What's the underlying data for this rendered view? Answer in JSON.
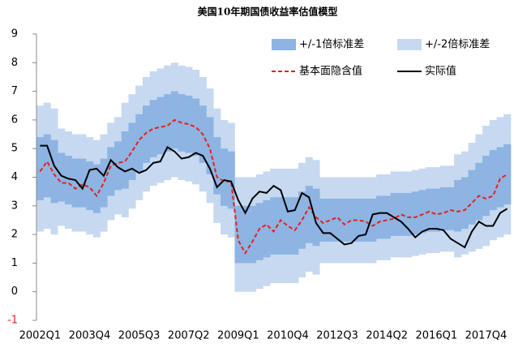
{
  "chart_data": {
    "type": "band-line",
    "title": "美国10年期国债收益率估值模型",
    "categories": [
      "2002Q1",
      null,
      null,
      null,
      null,
      null,
      null,
      "2003Q4",
      null,
      null,
      null,
      null,
      null,
      null,
      "2005Q3",
      null,
      null,
      null,
      null,
      null,
      null,
      "2007Q2",
      null,
      null,
      null,
      null,
      null,
      null,
      "2009Q1",
      null,
      null,
      null,
      null,
      null,
      null,
      "2010Q4",
      null,
      null,
      null,
      null,
      null,
      null,
      "2012Q3",
      null,
      null,
      null,
      null,
      null,
      null,
      "2014Q2",
      null,
      null,
      null,
      null,
      null,
      null,
      "2016Q1",
      null,
      null,
      null,
      null,
      null,
      null,
      "2017Q4",
      null,
      null,
      null
    ],
    "ylim": [
      -1,
      9
    ],
    "yticks": [
      -1,
      0,
      1,
      2,
      3,
      4,
      5,
      6,
      7,
      8,
      9
    ],
    "legend": "upper right",
    "bands": [
      {
        "name": "+/-2倍标准差",
        "color": "#c6d9f1",
        "lower": [
          2.1,
          2.2,
          2.0,
          2.3,
          2.2,
          2.1,
          2.1,
          2.0,
          1.9,
          2.1,
          2.5,
          2.7,
          2.6,
          2.9,
          3.2,
          3.5,
          3.7,
          3.8,
          3.9,
          4.0,
          3.9,
          3.85,
          3.75,
          3.5,
          3.1,
          2.4,
          2.0,
          1.9,
          0,
          0,
          0,
          0.1,
          0.2,
          0.3,
          0.3,
          0.3,
          0.3,
          0.5,
          0.7,
          0.6,
          1.0,
          1.0,
          1.0,
          1.0,
          1.0,
          1.0,
          1.0,
          1.0,
          1.1,
          1.1,
          1.2,
          1.2,
          1.2,
          1.25,
          1.3,
          1.35,
          1.35,
          1.4,
          1.4,
          1.2,
          1.3,
          1.4,
          1.5,
          1.6,
          1.8,
          1.9,
          2.0
        ],
        "values": [
          6.5,
          6.6,
          6.4,
          5.7,
          5.6,
          5.5,
          5.5,
          5.4,
          5.3,
          5.5,
          5.9,
          6.1,
          6.6,
          6.9,
          7.2,
          7.5,
          7.7,
          7.8,
          7.9,
          8.0,
          7.9,
          7.85,
          7.75,
          7.5,
          7.1,
          6.4,
          6.0,
          5.9,
          4.0,
          4.0,
          4.0,
          4.1,
          4.2,
          4.3,
          4.3,
          4.3,
          4.3,
          4.5,
          4.7,
          4.6,
          4.0,
          4.0,
          4.0,
          4.0,
          4.0,
          4.0,
          4.0,
          4.0,
          4.1,
          4.1,
          4.2,
          4.2,
          4.2,
          4.25,
          4.3,
          4.35,
          4.35,
          4.4,
          4.4,
          4.8,
          4.9,
          5.2,
          5.5,
          5.8,
          6.0,
          6.1,
          6.2
        ]
      },
      {
        "name": "+/-1倍标准差",
        "color": "#8db4e2",
        "lower": [
          3.2,
          3.3,
          3.1,
          3.15,
          3.05,
          2.95,
          2.95,
          2.85,
          2.75,
          2.95,
          3.35,
          3.55,
          3.6,
          3.9,
          4.2,
          4.5,
          4.7,
          4.8,
          4.9,
          5.0,
          4.9,
          4.85,
          4.75,
          4.5,
          4.1,
          3.4,
          3.0,
          2.9,
          1.0,
          1.0,
          1.0,
          1.1,
          1.2,
          1.3,
          1.3,
          1.3,
          1.3,
          1.5,
          1.7,
          1.6,
          1.75,
          1.75,
          1.75,
          1.75,
          1.75,
          1.75,
          1.75,
          1.75,
          1.85,
          1.85,
          1.95,
          1.95,
          1.95,
          2.0,
          2.05,
          2.1,
          2.1,
          2.15,
          2.15,
          2.1,
          2.2,
          2.35,
          2.5,
          2.65,
          2.85,
          2.95,
          3.05
        ],
        "values": [
          5.4,
          5.5,
          5.3,
          4.85,
          4.75,
          4.65,
          4.65,
          4.55,
          4.45,
          4.65,
          5.05,
          5.25,
          5.6,
          5.9,
          6.2,
          6.5,
          6.7,
          6.8,
          6.9,
          7.0,
          6.9,
          6.85,
          6.75,
          6.5,
          6.1,
          5.4,
          5.0,
          4.9,
          3.0,
          3.0,
          3.0,
          3.1,
          3.2,
          3.3,
          3.3,
          3.3,
          3.3,
          3.5,
          3.7,
          3.6,
          3.25,
          3.25,
          3.25,
          3.25,
          3.25,
          3.25,
          3.25,
          3.25,
          3.35,
          3.35,
          3.45,
          3.45,
          3.45,
          3.5,
          3.55,
          3.6,
          3.6,
          3.65,
          3.65,
          3.9,
          4.0,
          4.25,
          4.5,
          4.75,
          4.95,
          5.05,
          5.15
        ]
      }
    ],
    "series": [
      {
        "name": "基本面隐含值",
        "color": "#e8201c",
        "dash": true,
        "values": [
          4.2,
          4.55,
          4.1,
          3.8,
          3.8,
          3.6,
          3.75,
          3.65,
          3.35,
          3.8,
          4.4,
          4.5,
          4.55,
          4.9,
          5.3,
          5.55,
          5.7,
          5.75,
          5.8,
          6.0,
          5.9,
          5.85,
          5.75,
          5.5,
          5.0,
          4.0,
          3.85,
          3.85,
          1.8,
          1.35,
          1.75,
          2.2,
          2.35,
          2.1,
          2.5,
          2.3,
          2.15,
          2.5,
          2.95,
          2.6,
          2.4,
          2.5,
          2.6,
          2.35,
          2.5,
          2.5,
          2.45,
          2.3,
          2.45,
          2.5,
          2.55,
          2.7,
          2.6,
          2.6,
          2.7,
          2.8,
          2.7,
          2.75,
          2.85,
          2.8,
          2.85,
          3.1,
          3.35,
          3.25,
          3.35,
          3.95,
          4.1
        ]
      },
      {
        "name": "实际值",
        "color": "#000000",
        "dash": false,
        "values": [
          5.1,
          5.1,
          4.4,
          4.05,
          3.95,
          3.9,
          3.6,
          4.25,
          4.3,
          4.05,
          4.6,
          4.35,
          4.2,
          4.3,
          4.15,
          4.25,
          4.5,
          4.55,
          5.05,
          4.9,
          4.65,
          4.7,
          4.85,
          4.75,
          4.3,
          3.65,
          3.9,
          3.85,
          3.2,
          2.75,
          3.25,
          3.5,
          3.45,
          3.7,
          3.55,
          2.8,
          2.85,
          3.45,
          3.3,
          2.4,
          2.05,
          2.05,
          1.85,
          1.65,
          1.7,
          1.95,
          2.0,
          2.7,
          2.75,
          2.75,
          2.6,
          2.45,
          2.2,
          1.9,
          2.1,
          2.2,
          2.2,
          2.15,
          1.85,
          1.7,
          1.55,
          2.1,
          2.45,
          2.3,
          2.3,
          2.75,
          2.9
        ]
      }
    ]
  }
}
